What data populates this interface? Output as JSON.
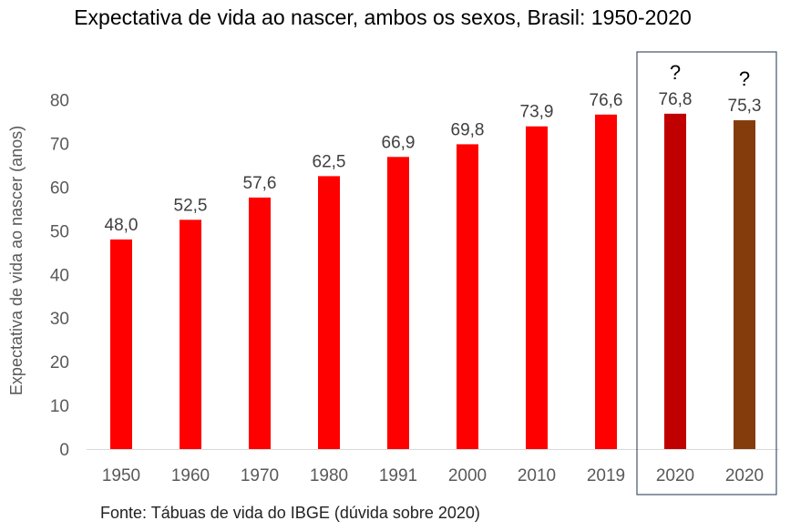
{
  "chart_data": {
    "type": "bar",
    "title": "Expectativa de vida ao nascer, ambos os sexos, Brasil: 1950-2020",
    "ylabel": "Expectativa de vida ao nascer (anos)",
    "xlabel": "",
    "ylim": [
      0,
      80
    ],
    "yticks": [
      "0",
      "10",
      "20",
      "30",
      "40",
      "50",
      "60",
      "70",
      "80"
    ],
    "categories": [
      "1950",
      "1960",
      "1970",
      "1980",
      "1991",
      "2000",
      "2010",
      "2019",
      "2020",
      "2020"
    ],
    "values": [
      48.0,
      52.5,
      57.6,
      62.5,
      66.9,
      69.8,
      73.9,
      76.6,
      76.8,
      75.3
    ],
    "value_labels": [
      "48,0",
      "52,5",
      "57,6",
      "62,5",
      "66,9",
      "69,8",
      "73,9",
      "76,6",
      "76,8",
      "75,3"
    ],
    "colors": [
      "#ff0000",
      "#ff0000",
      "#ff0000",
      "#ff0000",
      "#ff0000",
      "#ff0000",
      "#ff0000",
      "#ff0000",
      "#c00000",
      "#843c0c"
    ],
    "annotations": [
      "?",
      "?"
    ],
    "grid": false,
    "highlight_box_around": [
      "2020",
      "2020"
    ]
  },
  "source": "Fonte: Tábuas de vida do IBGE (dúvida sobre 2020)"
}
